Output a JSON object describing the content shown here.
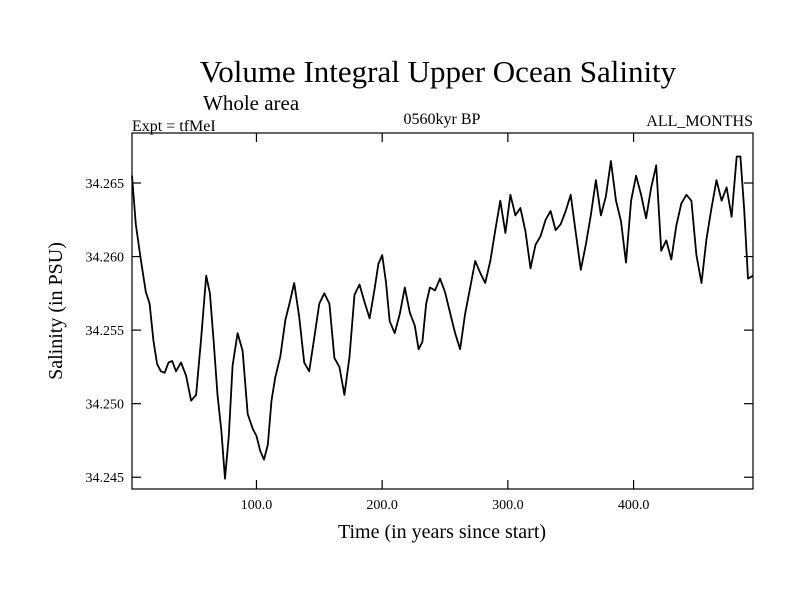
{
  "chart_data": {
    "type": "line",
    "title": "Volume Integral Upper Ocean Salinity",
    "subtitle": "Whole area",
    "left_label": "Expt = tfMeI",
    "center_label": "0560kyr BP",
    "right_label": "ALL_MONTHS",
    "xlabel": "Time (in years since start)",
    "ylabel": "Salinity (in PSU)",
    "xlim": [
      1,
      495
    ],
    "ylim": [
      34.2442,
      34.2684
    ],
    "xticks": [
      100,
      200,
      300,
      400
    ],
    "xtick_labels": [
      "100.0",
      "200.0",
      "300.0",
      "400.0"
    ],
    "yticks": [
      34.245,
      34.25,
      34.255,
      34.26,
      34.265
    ],
    "ytick_labels": [
      "34.245",
      "34.250",
      "34.255",
      "34.260",
      "34.265"
    ],
    "grid": false,
    "series": [
      {
        "color": "#000000",
        "x": [
          1,
          4,
          8,
          12,
          15,
          18,
          21,
          24,
          27,
          30,
          33,
          36,
          40,
          44,
          48,
          52,
          56,
          60,
          63,
          66,
          69,
          72,
          75,
          78,
          81,
          85,
          89,
          93,
          97,
          100,
          103,
          106,
          109,
          112,
          115,
          119,
          123,
          126,
          130,
          134,
          138,
          142,
          146,
          150,
          154,
          158,
          162,
          166,
          170,
          174,
          178,
          182,
          186,
          190,
          194,
          197,
          200,
          203,
          206,
          210,
          214,
          218,
          222,
          226,
          229,
          232,
          235,
          238,
          242,
          246,
          250,
          254,
          258,
          262,
          266,
          270,
          274,
          278,
          282,
          286,
          290,
          294,
          298,
          302,
          306,
          310,
          314,
          318,
          322,
          326,
          330,
          334,
          338,
          342,
          346,
          350,
          354,
          358,
          362,
          366,
          370,
          374,
          378,
          382,
          386,
          390,
          394,
          398,
          402,
          406,
          410,
          414,
          418,
          422,
          426,
          430,
          434,
          438,
          442,
          446,
          450,
          454,
          458,
          462,
          466,
          470,
          474,
          478,
          482,
          485,
          488,
          491,
          495
        ],
        "values": [
          34.2655,
          34.2622,
          34.2598,
          34.2576,
          34.2568,
          34.2543,
          34.2527,
          34.2522,
          34.2521,
          34.2528,
          34.2529,
          34.2522,
          34.2528,
          34.2519,
          34.2502,
          34.2506,
          34.2544,
          34.2587,
          34.2575,
          34.2542,
          34.2506,
          34.2482,
          34.2449,
          34.2478,
          34.2526,
          34.2548,
          34.2536,
          34.2493,
          34.2483,
          34.2478,
          34.2468,
          34.2462,
          34.2472,
          34.2502,
          34.2518,
          34.2532,
          34.2557,
          34.2567,
          34.2582,
          34.2559,
          34.2528,
          34.2522,
          34.2545,
          34.2568,
          34.2575,
          34.2568,
          34.2531,
          34.2525,
          34.2506,
          34.2532,
          34.2574,
          34.2581,
          34.2569,
          34.2558,
          34.2578,
          34.2595,
          34.2601,
          34.2583,
          34.2556,
          34.2548,
          34.2561,
          34.2579,
          34.2562,
          34.2553,
          34.2537,
          34.2542,
          34.2568,
          34.2579,
          34.2577,
          34.2585,
          34.2576,
          34.2562,
          34.2548,
          34.2537,
          34.2561,
          34.2579,
          34.2597,
          34.2589,
          34.2582,
          34.2597,
          34.2618,
          34.2638,
          34.2616,
          34.2642,
          34.2628,
          34.2633,
          34.2617,
          34.2592,
          34.2608,
          34.2614,
          34.2625,
          34.2631,
          34.2618,
          34.2622,
          34.2631,
          34.2642,
          34.2616,
          34.2591,
          34.2608,
          34.2628,
          34.2652,
          34.2628,
          34.2641,
          34.2665,
          34.2638,
          34.2624,
          34.2596,
          34.2638,
          34.2655,
          34.2642,
          34.2626,
          34.2647,
          34.2662,
          34.2604,
          34.2611,
          34.2598,
          34.2621,
          34.2636,
          34.2642,
          34.2638,
          34.2601,
          34.2582,
          34.2612,
          34.2633,
          34.2652,
          34.2638,
          34.2647,
          34.2627,
          34.2668,
          34.2668,
          34.2632,
          34.2585,
          34.2587
        ]
      }
    ]
  }
}
